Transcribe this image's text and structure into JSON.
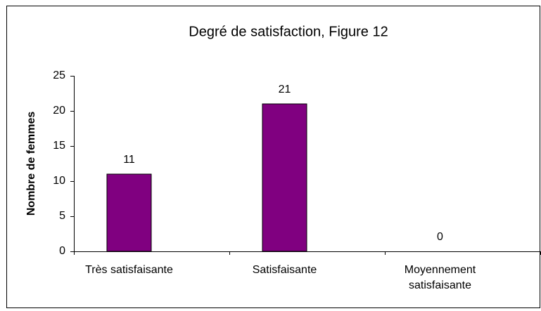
{
  "chart_data": {
    "type": "bar",
    "title": "Degré de satisfaction, Figure 12",
    "categories": [
      "Très satisfaisante",
      "Satisfaisante",
      "Moyennement satisfaisante"
    ],
    "values": [
      11,
      21,
      0
    ],
    "color": "#800080",
    "ylabel": "Nombre de femmes",
    "ylim": [
      0,
      25
    ],
    "yticks": [
      0,
      5,
      10,
      15,
      20,
      25
    ],
    "grid": false
  }
}
